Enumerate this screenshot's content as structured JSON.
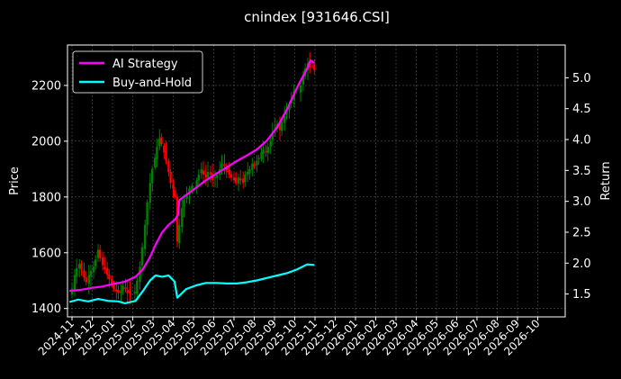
{
  "chart_data": {
    "type": "line",
    "title": "cnindex [931646.CSI]",
    "ylabel_left": "Price",
    "ylabel_right": "Return",
    "ylim_left": [
      1370,
      2345
    ],
    "ylim_right": [
      1.13,
      5.53
    ],
    "yticks_left": [
      1400,
      1600,
      1800,
      2000,
      2200
    ],
    "yticks_right": [
      1.5,
      2.0,
      2.5,
      3.0,
      3.5,
      4.0,
      4.5,
      5.0
    ],
    "xticks": [
      "2024-11",
      "2024-12",
      "2025-01",
      "2025-02",
      "2025-03",
      "2025-04",
      "2025-05",
      "2025-06",
      "2025-07",
      "2025-08",
      "2025-09",
      "2025-10",
      "2025-11",
      "2025-12",
      "2026-01",
      "2026-02",
      "2026-03",
      "2026-04",
      "2026-05",
      "2026-06",
      "2026-07",
      "2026-08",
      "2026-09",
      "2026-10"
    ],
    "grid": true,
    "legend_position": "top-left",
    "candles": {
      "up_color": "#008000",
      "down_color": "#ff0000",
      "close": [
        [
          "2024-10-28",
          1450
        ],
        [
          "2024-11-01",
          1470
        ],
        [
          "2024-11-05",
          1520
        ],
        [
          "2024-11-08",
          1545
        ],
        [
          "2024-11-12",
          1560
        ],
        [
          "2024-11-15",
          1540
        ],
        [
          "2024-11-19",
          1510
        ],
        [
          "2024-11-22",
          1495
        ],
        [
          "2024-11-26",
          1520
        ],
        [
          "2024-11-29",
          1535
        ],
        [
          "2024-12-03",
          1550
        ],
        [
          "2024-12-06",
          1575
        ],
        [
          "2024-12-10",
          1610
        ],
        [
          "2024-12-13",
          1580
        ],
        [
          "2024-12-17",
          1555
        ],
        [
          "2024-12-20",
          1540
        ],
        [
          "2024-12-24",
          1520
        ],
        [
          "2024-12-27",
          1505
        ],
        [
          "2024-12-31",
          1490
        ],
        [
          "2025-01-03",
          1470
        ],
        [
          "2025-01-07",
          1460
        ],
        [
          "2025-01-10",
          1455
        ],
        [
          "2025-01-14",
          1465
        ],
        [
          "2025-01-17",
          1480
        ],
        [
          "2025-01-21",
          1470
        ],
        [
          "2025-01-24",
          1455
        ],
        [
          "2025-01-28",
          1450
        ],
        [
          "2025-02-04",
          1460
        ],
        [
          "2025-02-07",
          1500
        ],
        [
          "2025-02-11",
          1550
        ],
        [
          "2025-02-14",
          1620
        ],
        [
          "2025-02-18",
          1700
        ],
        [
          "2025-02-21",
          1780
        ],
        [
          "2025-02-25",
          1850
        ],
        [
          "2025-02-28",
          1900
        ],
        [
          "2025-03-04",
          1940
        ],
        [
          "2025-03-07",
          1980
        ],
        [
          "2025-03-11",
          2010
        ],
        [
          "2025-03-14",
          1990
        ],
        [
          "2025-03-18",
          1960
        ],
        [
          "2025-03-21",
          1930
        ],
        [
          "2025-03-25",
          1890
        ],
        [
          "2025-03-28",
          1850
        ],
        [
          "2025-04-01",
          1830
        ],
        [
          "2025-04-03",
          1800
        ],
        [
          "2025-04-07",
          1640
        ],
        [
          "2025-04-10",
          1700
        ],
        [
          "2025-04-14",
          1760
        ],
        [
          "2025-04-17",
          1790
        ],
        [
          "2025-04-21",
          1810
        ],
        [
          "2025-04-25",
          1830
        ],
        [
          "2025-04-29",
          1840
        ],
        [
          "2025-05-06",
          1860
        ],
        [
          "2025-05-09",
          1880
        ],
        [
          "2025-05-13",
          1900
        ],
        [
          "2025-05-16",
          1880
        ],
        [
          "2025-05-20",
          1870
        ],
        [
          "2025-05-23",
          1890
        ],
        [
          "2025-05-27",
          1880
        ],
        [
          "2025-05-30",
          1860
        ],
        [
          "2025-06-03",
          1870
        ],
        [
          "2025-06-06",
          1880
        ],
        [
          "2025-06-10",
          1900
        ],
        [
          "2025-06-13",
          1920
        ],
        [
          "2025-06-17",
          1910
        ],
        [
          "2025-06-20",
          1890
        ],
        [
          "2025-06-24",
          1880
        ],
        [
          "2025-06-27",
          1870
        ],
        [
          "2025-07-01",
          1860
        ],
        [
          "2025-07-04",
          1850
        ],
        [
          "2025-07-08",
          1870
        ],
        [
          "2025-07-11",
          1860
        ],
        [
          "2025-07-15",
          1850
        ],
        [
          "2025-07-18",
          1880
        ],
        [
          "2025-07-22",
          1890
        ],
        [
          "2025-07-25",
          1900
        ],
        [
          "2025-07-29",
          1920
        ],
        [
          "2025-08-01",
          1910
        ],
        [
          "2025-08-05",
          1930
        ],
        [
          "2025-08-08",
          1940
        ],
        [
          "2025-08-12",
          1960
        ],
        [
          "2025-08-15",
          1970
        ],
        [
          "2025-08-19",
          1960
        ],
        [
          "2025-08-22",
          1980
        ],
        [
          "2025-08-26",
          2000
        ],
        [
          "2025-08-29",
          2030
        ],
        [
          "2025-09-02",
          2050
        ],
        [
          "2025-09-05",
          2060
        ],
        [
          "2025-09-09",
          2040
        ],
        [
          "2025-09-12",
          2070
        ],
        [
          "2025-09-16",
          2090
        ],
        [
          "2025-09-19",
          2110
        ],
        [
          "2025-09-23",
          2130
        ],
        [
          "2025-09-26",
          2150
        ],
        [
          "2025-09-30",
          2180
        ],
        [
          "2025-10-10",
          2200
        ],
        [
          "2025-10-14",
          2230
        ],
        [
          "2025-10-17",
          2260
        ],
        [
          "2025-10-21",
          2280
        ],
        [
          "2025-10-24",
          2265
        ],
        [
          "2025-10-28",
          2270
        ],
        [
          "2025-10-31",
          2255
        ]
      ]
    },
    "series": [
      {
        "name": "AI Strategy",
        "axis": "right",
        "color": "#ff00ff",
        "points": [
          [
            "2024-10-28",
            1.55
          ],
          [
            "2024-11-15",
            1.57
          ],
          [
            "2024-12-01",
            1.6
          ],
          [
            "2024-12-15",
            1.62
          ],
          [
            "2025-01-01",
            1.66
          ],
          [
            "2025-01-20",
            1.7
          ],
          [
            "2025-02-05",
            1.78
          ],
          [
            "2025-02-15",
            1.9
          ],
          [
            "2025-02-25",
            2.1
          ],
          [
            "2025-03-05",
            2.3
          ],
          [
            "2025-03-15",
            2.5
          ],
          [
            "2025-03-25",
            2.62
          ],
          [
            "2025-04-03",
            2.7
          ],
          [
            "2025-04-08",
            2.78
          ],
          [
            "2025-04-10",
            3.02
          ],
          [
            "2025-04-20",
            3.1
          ],
          [
            "2025-05-05",
            3.22
          ],
          [
            "2025-05-20",
            3.34
          ],
          [
            "2025-06-05",
            3.45
          ],
          [
            "2025-06-20",
            3.55
          ],
          [
            "2025-07-05",
            3.65
          ],
          [
            "2025-07-20",
            3.74
          ],
          [
            "2025-08-05",
            3.84
          ],
          [
            "2025-08-20",
            3.98
          ],
          [
            "2025-09-05",
            4.2
          ],
          [
            "2025-09-20",
            4.5
          ],
          [
            "2025-10-05",
            4.85
          ],
          [
            "2025-10-20",
            5.15
          ],
          [
            "2025-10-25",
            5.28
          ],
          [
            "2025-10-31",
            5.24
          ]
        ]
      },
      {
        "name": "Buy-and-Hold",
        "axis": "right",
        "color": "#00ffff",
        "points": [
          [
            "2024-10-28",
            1.37
          ],
          [
            "2024-11-10",
            1.41
          ],
          [
            "2024-11-25",
            1.38
          ],
          [
            "2024-12-10",
            1.42
          ],
          [
            "2024-12-25",
            1.39
          ],
          [
            "2025-01-10",
            1.38
          ],
          [
            "2025-01-20",
            1.35
          ],
          [
            "2025-02-05",
            1.39
          ],
          [
            "2025-02-15",
            1.55
          ],
          [
            "2025-02-25",
            1.72
          ],
          [
            "2025-03-05",
            1.8
          ],
          [
            "2025-03-15",
            1.78
          ],
          [
            "2025-03-25",
            1.8
          ],
          [
            "2025-04-03",
            1.7
          ],
          [
            "2025-04-07",
            1.44
          ],
          [
            "2025-04-20",
            1.58
          ],
          [
            "2025-05-05",
            1.64
          ],
          [
            "2025-05-20",
            1.68
          ],
          [
            "2025-06-05",
            1.68
          ],
          [
            "2025-06-20",
            1.67
          ],
          [
            "2025-07-05",
            1.67
          ],
          [
            "2025-07-20",
            1.69
          ],
          [
            "2025-08-05",
            1.72
          ],
          [
            "2025-08-20",
            1.76
          ],
          [
            "2025-09-05",
            1.8
          ],
          [
            "2025-09-20",
            1.84
          ],
          [
            "2025-10-05",
            1.9
          ],
          [
            "2025-10-20",
            1.98
          ],
          [
            "2025-10-31",
            1.97
          ]
        ]
      }
    ]
  }
}
